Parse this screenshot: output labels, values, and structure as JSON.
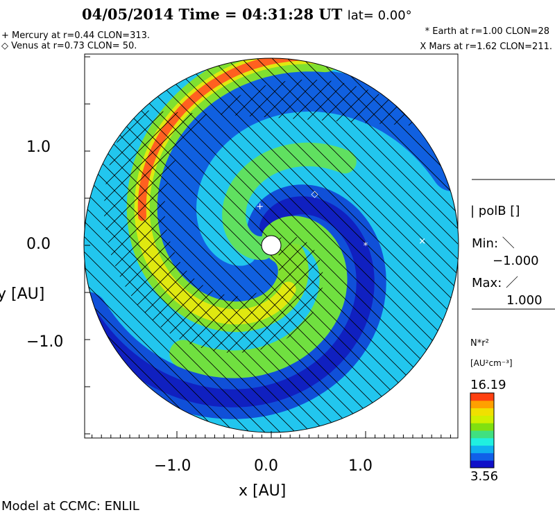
{
  "header": {
    "title": "04/05/2014 Time = 04:31:28 UT",
    "lat": "lat= 0.00°",
    "mercury": "+ Mercury at r=0.44 CLON=313.",
    "venus": "◇ Venus at r=0.73 CLON= 50.",
    "earth": "* Earth at  r=1.00 CLON=28",
    "mars": "X Mars at r=1.62 CLON=211."
  },
  "legend": {
    "var": "| polB []",
    "min_label": "Min: ＼",
    "min_value": "−1.000",
    "max_label": "Max: ／",
    "max_value": "1.000",
    "cb_title": "N*r²",
    "cb_units": "[AU²cm⁻³]",
    "cb_max": "16.19",
    "cb_min": "3.56"
  },
  "footer": "Model at CCMC: ENLIL",
  "chart_data": {
    "type": "heatmap",
    "title": "04/05/2014 Time = 04:31:28 UT lat= 0.00°",
    "xlabel": "x [AU]",
    "ylabel": "y [AU]",
    "xlim": [
      -2.0,
      2.0
    ],
    "ylim": [
      -2.0,
      2.0
    ],
    "xticks": [
      {
        "v": -1.0,
        "label": "−1.0"
      },
      {
        "v": 0.0,
        "label": "0.0"
      },
      {
        "v": 1.0,
        "label": "1.0"
      }
    ],
    "yticks": [
      {
        "v": 1.0,
        "label": "1.0"
      },
      {
        "v": 0.0,
        "label": "0.0"
      },
      {
        "v": -1.0,
        "label": "−1.0"
      }
    ],
    "colorbar": {
      "min": 3.56,
      "max": 16.19,
      "colors": [
        "#1010c8",
        "#1060e8",
        "#10b0f0",
        "#20f0e0",
        "#40e080",
        "#80e010",
        "#d0f000",
        "#f0e000",
        "#ffa000",
        "#ff4010"
      ]
    },
    "markers": [
      {
        "name": "Mercury",
        "symbol": "+",
        "x": -0.12,
        "y": 0.42
      },
      {
        "name": "Venus",
        "symbol": "◇",
        "x": 0.46,
        "y": 0.55
      },
      {
        "name": "Earth",
        "symbol": "*",
        "x": 1.0,
        "y": 0.0
      },
      {
        "name": "Mars",
        "symbol": "×",
        "x": 1.6,
        "y": 0.05
      }
    ]
  }
}
